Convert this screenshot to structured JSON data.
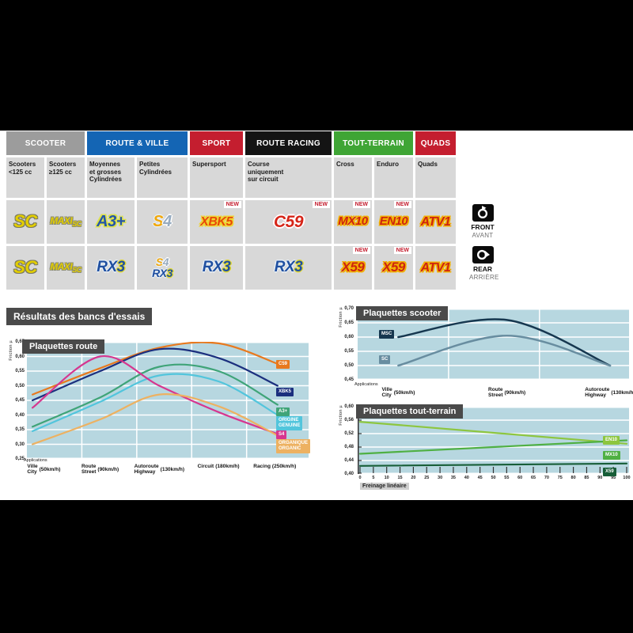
{
  "page": {
    "margin_color": "#000000",
    "content_color": "#ffffff"
  },
  "table": {
    "new_label": "NEW",
    "categories": [
      {
        "label": "SCOOTER",
        "bg": "#9C9C9C",
        "span": 2
      },
      {
        "label": "ROUTE & VILLE",
        "bg": "#1465B4",
        "span": 2
      },
      {
        "label": "SPORT",
        "bg": "#C41E2F",
        "span": 1
      },
      {
        "label": "ROUTE RACING",
        "bg": "#141414",
        "span": 1
      },
      {
        "label": "TOUT-TERRAIN",
        "bg": "#3FA535",
        "span": 2
      },
      {
        "label": "QUADS",
        "bg": "#C41E2F",
        "span": 1
      }
    ],
    "subheaders": [
      "Scooters\n<125 cc",
      "Scooters\n≥125 cc",
      "Moyennes\net grosses\nCylindrées",
      "Petites\nCylindrées",
      "Supersport",
      "Course\nuniquement\nsur circuit",
      "Cross",
      "Enduro",
      "Quads"
    ],
    "front_row": [
      {
        "logos": [
          {
            "text": "SC",
            "style": "sc"
          }
        ],
        "new": false
      },
      {
        "logos": [
          {
            "text": "MAXI SC",
            "style": "maxisc"
          }
        ],
        "new": false
      },
      {
        "logos": [
          {
            "text": "A3+",
            "style": "a3"
          }
        ],
        "new": false
      },
      {
        "logos": [
          {
            "text": "S4",
            "style": "s4"
          }
        ],
        "new": false
      },
      {
        "logos": [
          {
            "text": "XBK5",
            "style": "xbk5"
          }
        ],
        "new": true
      },
      {
        "logos": [
          {
            "text": "C59",
            "style": "c59"
          }
        ],
        "new": true
      },
      {
        "logos": [
          {
            "text": "MX10",
            "style": "mx10"
          }
        ],
        "new": true
      },
      {
        "logos": [
          {
            "text": "EN10",
            "style": "en10"
          }
        ],
        "new": true
      },
      {
        "logos": [
          {
            "text": "ATV1",
            "style": "atv1"
          }
        ],
        "new": false
      }
    ],
    "rear_row": [
      {
        "logos": [
          {
            "text": "SC",
            "style": "sc"
          }
        ],
        "new": false
      },
      {
        "logos": [
          {
            "text": "MAXI SC",
            "style": "maxisc"
          }
        ],
        "new": false
      },
      {
        "logos": [
          {
            "text": "RX3",
            "style": "rx3"
          }
        ],
        "new": false
      },
      {
        "logos": [
          {
            "text": "S4",
            "style": "s4small"
          },
          {
            "text": "RX3",
            "style": "rx3small"
          }
        ],
        "new": false
      },
      {
        "logos": [
          {
            "text": "RX3",
            "style": "rx3"
          }
        ],
        "new": false
      },
      {
        "logos": [
          {
            "text": "RX3",
            "style": "rx3"
          }
        ],
        "new": false
      },
      {
        "logos": [
          {
            "text": "X59",
            "style": "x59"
          }
        ],
        "new": true
      },
      {
        "logos": [
          {
            "text": "X59",
            "style": "x59"
          }
        ],
        "new": true
      },
      {
        "logos": [
          {
            "text": "ATV1",
            "style": "atv1"
          }
        ],
        "new": false
      }
    ]
  },
  "side": {
    "front_label": "FRONT",
    "front_sub": "AVANT",
    "rear_label": "REAR",
    "rear_sub": "ARRIÈRE"
  },
  "section_title": "Résultats des bancs d'essais",
  "chart_data": [
    {
      "id": "route",
      "type": "line",
      "title": "Plaquettes route",
      "ylabel": "Friction µ",
      "applications_label": "Applications",
      "ylim": [
        0.25,
        0.65
      ],
      "yticks": [
        "0,65",
        "0,60",
        "0,55",
        "0,50",
        "0,45",
        "0,40",
        "0,35",
        "0,30",
        "0,25"
      ],
      "categories": [
        {
          "fr": "Ville",
          "en": "City",
          "speed": "(50km/h)"
        },
        {
          "fr": "Route",
          "en": "Street",
          "speed": "(90km/h)"
        },
        {
          "fr": "Autoroute",
          "en": "Highway",
          "speed": "(130km/h)"
        },
        {
          "fr": "Circuit",
          "en": "",
          "speed": "(180km/h)"
        },
        {
          "fr": "Racing",
          "en": "",
          "speed": "(250km/h)"
        }
      ],
      "series": [
        {
          "name": "C59",
          "label_lines": [
            "C59"
          ],
          "color": "#E8791E",
          "values": [
            0.47,
            0.56,
            0.63,
            0.645,
            0.575
          ]
        },
        {
          "name": "XBK5",
          "label_lines": [
            "XBK5"
          ],
          "color": "#1B2F7E",
          "values": [
            0.45,
            0.55,
            0.625,
            0.595,
            0.5
          ]
        },
        {
          "name": "A3+",
          "label_lines": [
            "A3+"
          ],
          "color": "#3FA478",
          "values": [
            0.36,
            0.46,
            0.565,
            0.55,
            0.435
          ]
        },
        {
          "name": "ORIGINE GENUINE",
          "label_lines": [
            "ORIGINE",
            "GENUINE"
          ],
          "color": "#52C5DC",
          "values": [
            0.345,
            0.445,
            0.535,
            0.515,
            0.4
          ]
        },
        {
          "name": "S4",
          "label_lines": [
            "S4"
          ],
          "color": "#D6368F",
          "values": [
            0.425,
            0.6,
            0.5,
            0.41,
            0.335
          ]
        },
        {
          "name": "ORGANIQUE ORGANIC",
          "label_lines": [
            "ORGANIQUE",
            "ORGANIC"
          ],
          "color": "#EDB161",
          "values": [
            0.3,
            0.385,
            0.47,
            0.43,
            0.33
          ]
        }
      ]
    },
    {
      "id": "scooter",
      "type": "line",
      "title": "Plaquettes scooter",
      "ylabel": "Friction µ",
      "applications_label": "Applications",
      "ylim": [
        0.45,
        0.7
      ],
      "yticks": [
        "0,70",
        "0,65",
        "0,60",
        "0,55",
        "0,50",
        "0,45"
      ],
      "categories": [
        {
          "fr": "Ville",
          "en": "City",
          "speed": "(50km/h)"
        },
        {
          "fr": "Route",
          "en": "Street",
          "speed": "(90km/h)"
        },
        {
          "fr": "Autoroute",
          "en": "Highway",
          "speed": "(130km/h)"
        }
      ],
      "series": [
        {
          "name": "MSC",
          "label_lines": [
            "MSC"
          ],
          "color": "#16374F",
          "values": [
            0.6,
            0.66,
            0.5
          ]
        },
        {
          "name": "SC",
          "label_lines": [
            "SC"
          ],
          "color": "#688DA0",
          "values": [
            0.5,
            0.605,
            0.5
          ]
        }
      ]
    },
    {
      "id": "tt",
      "type": "line",
      "title": "Plaquettes tout-terrain",
      "ylabel": "Friction µ",
      "xlabel": "Freinage linéaire",
      "ylim": [
        0.4,
        0.6
      ],
      "xlim": [
        0,
        100
      ],
      "yticks": [
        "0,60",
        "0,56",
        "0,52",
        "0,48",
        "0,44",
        "0,40"
      ],
      "xticks": [
        "0",
        "5",
        "10",
        "15",
        "20",
        "25",
        "30",
        "35",
        "40",
        "45",
        "50",
        "55",
        "60",
        "65",
        "70",
        "75",
        "80",
        "85",
        "90",
        "95",
        "100"
      ],
      "series": [
        {
          "name": "EN10",
          "label_lines": [
            "EN10"
          ],
          "color": "#8DC63F",
          "points": [
            [
              0,
              0.555
            ],
            [
              100,
              0.49
            ]
          ]
        },
        {
          "name": "MX10",
          "label_lines": [
            "MX10"
          ],
          "color": "#4FB043",
          "points": [
            [
              0,
              0.46
            ],
            [
              100,
              0.5
            ]
          ]
        },
        {
          "name": "X59",
          "label_lines": [
            "X59"
          ],
          "color": "#175E38",
          "points": [
            [
              0,
              0.424
            ],
            [
              100,
              0.431
            ]
          ]
        }
      ]
    }
  ]
}
